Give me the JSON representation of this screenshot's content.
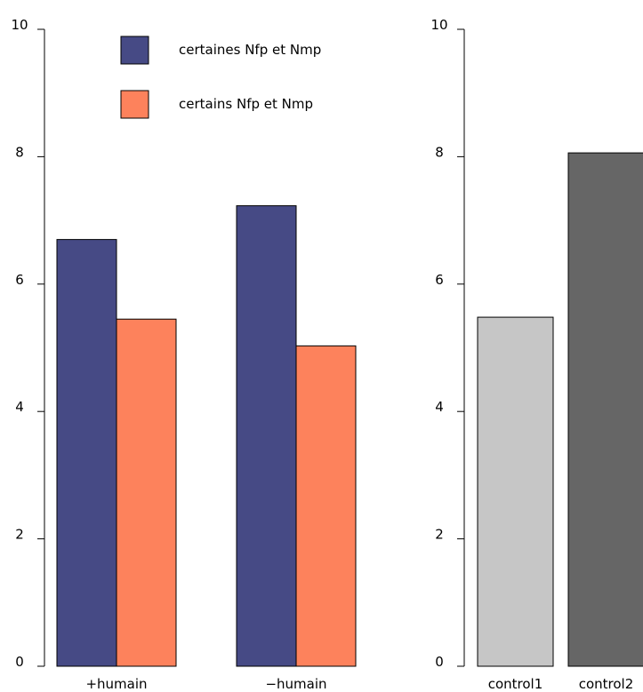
{
  "chart_data": [
    {
      "type": "bar",
      "title": "",
      "xlabel": "",
      "ylabel": "",
      "ylim": [
        0,
        10
      ],
      "yticks": [
        "0",
        "2",
        "4",
        "6",
        "8",
        "10"
      ],
      "categories": [
        "+humain",
        "−humain"
      ],
      "series": [
        {
          "name": "certaines Nfp et Nmp",
          "color": "#464a85",
          "values": [
            6.7,
            7.23
          ]
        },
        {
          "name": "certains Nfp et Nmp",
          "color": "#fd825c",
          "values": [
            5.45,
            5.03
          ]
        }
      ],
      "legend": "top-left",
      "grid": false
    },
    {
      "type": "bar",
      "title": "",
      "xlabel": "",
      "ylabel": "",
      "ylim": [
        0,
        10
      ],
      "yticks": [
        "0",
        "2",
        "4",
        "6",
        "8",
        "10"
      ],
      "categories": [
        "control1",
        "control2"
      ],
      "values": [
        5.48,
        8.06
      ],
      "colors": [
        "#c6c6c6",
        "#666666"
      ],
      "grid": false
    }
  ]
}
